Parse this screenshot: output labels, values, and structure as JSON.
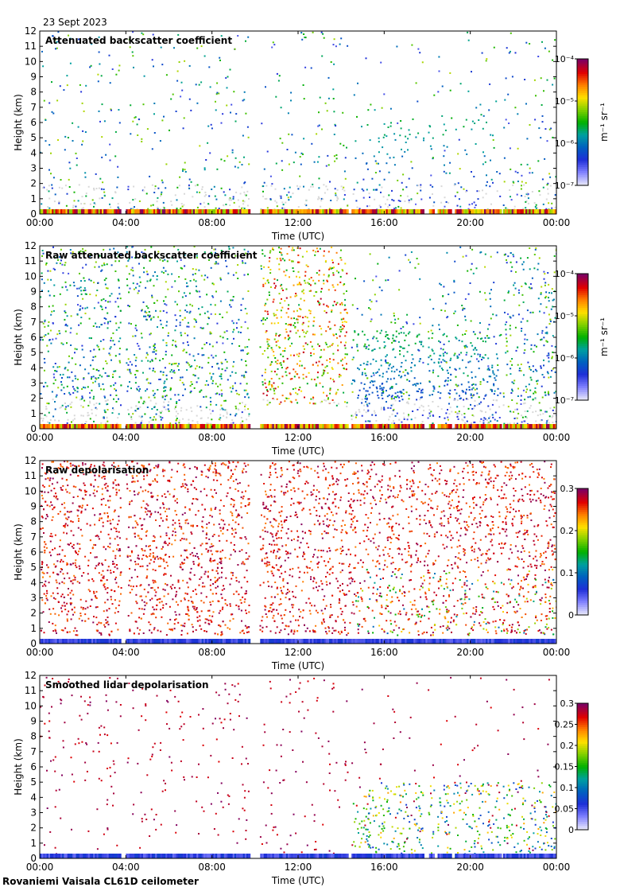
{
  "figure": {
    "date": "23 Sept 2023",
    "footer": "Rovaniemi Vaisala CL61D ceilometer",
    "colors": {
      "background": "#ffffff",
      "noise_gray": "#d8d8d8",
      "rainbow": [
        "#e6e6fa",
        "#8080ff",
        "#1f2fd8",
        "#0060c0",
        "#00a0a0",
        "#00b000",
        "#80d000",
        "#ffe000",
        "#ff8000",
        "#e00000",
        "#800060"
      ]
    }
  },
  "chart_data": [
    {
      "type": "heatmap",
      "title": "Attenuated backscatter coefficient",
      "xlabel": "Time (UTC)",
      "ylabel": "Height (km)",
      "x_ticks": [
        "00:00",
        "04:00",
        "08:00",
        "12:00",
        "16:00",
        "20:00",
        "00:00"
      ],
      "x_range_hours": [
        0,
        24
      ],
      "y_ticks": [
        "0",
        "1",
        "2",
        "3",
        "4",
        "5",
        "6",
        "7",
        "8",
        "9",
        "10",
        "11",
        "12"
      ],
      "y_range_km": [
        0,
        12
      ],
      "colorbar": {
        "scale": "log",
        "ticks": [
          "10⁻⁷",
          "10⁻⁶",
          "10⁻⁵",
          "10⁻⁴"
        ],
        "label": "m⁻¹ sr⁻¹",
        "range": [
          -7,
          -4
        ]
      },
      "data_gaps_hours": [
        [
          3.75,
          4.0
        ],
        [
          9.7,
          10.2
        ],
        [
          14.3,
          14.45
        ],
        [
          17.8,
          18.0
        ],
        [
          18.3,
          18.45
        ],
        [
          19.1,
          19.2
        ],
        [
          21.4,
          21.5
        ]
      ]
    },
    {
      "type": "heatmap",
      "title": "Raw attenuated backscatter coefficient",
      "xlabel": "Time (UTC)",
      "ylabel": "Height (km)",
      "x_ticks": [
        "00:00",
        "04:00",
        "08:00",
        "12:00",
        "16:00",
        "20:00",
        "00:00"
      ],
      "x_range_hours": [
        0,
        24
      ],
      "y_ticks": [
        "0",
        "1",
        "2",
        "3",
        "4",
        "5",
        "6",
        "7",
        "8",
        "9",
        "10",
        "11",
        "12"
      ],
      "y_range_km": [
        0,
        12
      ],
      "colorbar": {
        "scale": "log",
        "ticks": [
          "10⁻⁷",
          "10⁻⁶",
          "10⁻⁵",
          "10⁻⁴"
        ],
        "label": "m⁻¹ sr⁻¹",
        "range": [
          -7,
          -4
        ]
      },
      "data_gaps_hours": [
        [
          3.75,
          4.0
        ],
        [
          9.7,
          10.2
        ],
        [
          14.3,
          14.45
        ],
        [
          17.8,
          18.0
        ],
        [
          18.3,
          18.45
        ],
        [
          19.1,
          19.2
        ],
        [
          21.4,
          21.5
        ]
      ]
    },
    {
      "type": "heatmap",
      "title": "Raw depolarisation",
      "xlabel": "Time (UTC)",
      "ylabel": "Height (km)",
      "x_ticks": [
        "00:00",
        "04:00",
        "08:00",
        "12:00",
        "16:00",
        "20:00",
        "00:00"
      ],
      "x_range_hours": [
        0,
        24
      ],
      "y_ticks": [
        "0",
        "1",
        "2",
        "3",
        "4",
        "5",
        "6",
        "7",
        "8",
        "9",
        "10",
        "11",
        "12"
      ],
      "y_range_km": [
        0,
        12
      ],
      "colorbar": {
        "scale": "linear",
        "ticks": [
          "0",
          "0.1",
          "0.2",
          "0.3"
        ],
        "label": "",
        "range": [
          0,
          0.3
        ]
      },
      "data_gaps_hours": [
        [
          3.75,
          4.0
        ],
        [
          9.7,
          10.2
        ]
      ]
    },
    {
      "type": "heatmap",
      "title": "Smoothed lidar depolarisation",
      "xlabel": "Time (UTC)",
      "ylabel": "Height (km)",
      "x_ticks": [
        "00:00",
        "04:00",
        "08:00",
        "12:00",
        "16:00",
        "20:00",
        "00:00"
      ],
      "x_range_hours": [
        0,
        24
      ],
      "y_ticks": [
        "0",
        "1",
        "2",
        "3",
        "4",
        "5",
        "6",
        "7",
        "8",
        "9",
        "10",
        "11",
        "12"
      ],
      "y_range_km": [
        0,
        12
      ],
      "colorbar": {
        "scale": "linear",
        "ticks": [
          "0",
          "0.05",
          "0.1",
          "0.15",
          "0.2",
          "0.25",
          "0.3"
        ],
        "label": "",
        "range": [
          0,
          0.3
        ]
      },
      "data_gaps_hours": [
        [
          3.75,
          4.0
        ],
        [
          9.7,
          10.2
        ],
        [
          14.3,
          14.45
        ],
        [
          17.8,
          18.0
        ],
        [
          18.3,
          18.45
        ],
        [
          19.1,
          19.2
        ],
        [
          21.4,
          21.5
        ]
      ]
    }
  ]
}
